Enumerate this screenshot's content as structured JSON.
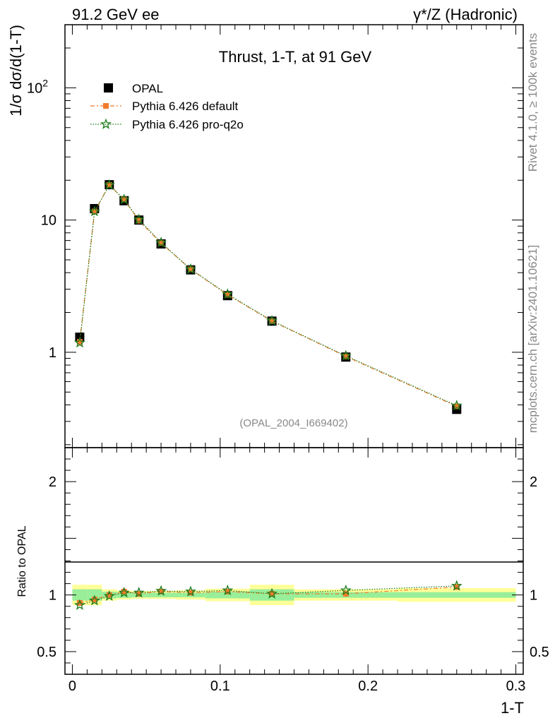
{
  "header": {
    "left": "91.2 GeV ee",
    "right": "γ*/Z (Hadronic)"
  },
  "side": {
    "rivet": "Rivet 4.1.0, ≥ 100k events",
    "mcplots": "mcplots.cern.ch [arXiv:2401.10621]"
  },
  "chart_data": [
    {
      "type": "scatter",
      "title": "Thrust, 1-T, at 91 GeV",
      "analysis_tag": "(OPAL_2004_I669402)",
      "xlabel": "1-T",
      "ylabel": "1/σ  dσ/d(1-T)",
      "yscale": "log",
      "xlim": [
        -0.005,
        0.305
      ],
      "ylim": [
        0.19,
        300
      ],
      "x_ticks": [
        "0",
        "0.1",
        "0.2",
        "0.3"
      ],
      "y_ticks": [
        "1",
        "10",
        "10^2"
      ],
      "x": [
        0.005,
        0.015,
        0.025,
        0.035,
        0.045,
        0.06,
        0.08,
        0.105,
        0.135,
        0.185,
        0.26
      ],
      "series": [
        {
          "name": "OPAL",
          "color": "#000000",
          "marker": "square",
          "values": [
            1.3,
            12.2,
            18.5,
            14.0,
            10.0,
            6.6,
            4.2,
            2.68,
            1.72,
            0.92,
            0.37
          ]
        },
        {
          "name": "Pythia 6.426 default",
          "color": "#f07c2a",
          "marker": "square-small",
          "line": "dashdot",
          "values": [
            1.2,
            11.6,
            18.4,
            14.3,
            9.9,
            6.7,
            4.24,
            2.72,
            1.72,
            0.93,
            0.39
          ]
        },
        {
          "name": "Pythia 6.426 pro-q2o",
          "color": "#1a7a1a",
          "marker": "star",
          "line": "dotted",
          "values": [
            1.18,
            11.6,
            18.4,
            14.3,
            10.1,
            6.75,
            4.25,
            2.75,
            1.73,
            0.94,
            0.395
          ]
        }
      ]
    },
    {
      "type": "scatter",
      "title": "",
      "xlabel": "1-T",
      "ylabel": "Ratio to OPAL",
      "xlim": [
        -0.005,
        0.305
      ],
      "ylim": [
        0.3,
        2.3
      ],
      "y_ticks": [
        "0.5",
        "1",
        "2"
      ],
      "bins": [
        0.0,
        0.01,
        0.02,
        0.03,
        0.04,
        0.05,
        0.07,
        0.09,
        0.12,
        0.15,
        0.22,
        0.3
      ],
      "band_inner": [
        0.05,
        0.05,
        0.03,
        0.025,
        0.02,
        0.02,
        0.02,
        0.03,
        0.05,
        0.025,
        0.025
      ],
      "band_outer": [
        0.09,
        0.09,
        0.05,
        0.04,
        0.035,
        0.035,
        0.04,
        0.055,
        0.09,
        0.05,
        0.06
      ],
      "x": [
        0.005,
        0.015,
        0.025,
        0.035,
        0.045,
        0.06,
        0.08,
        0.105,
        0.135,
        0.185,
        0.26
      ],
      "series": [
        {
          "name": "Pythia 6.426 default",
          "color": "#f07c2a",
          "values": [
            0.93,
            0.96,
            1.0,
            1.03,
            1.01,
            1.03,
            1.02,
            1.03,
            1.01,
            1.01,
            1.07
          ]
        },
        {
          "name": "Pythia 6.426 pro-q2o",
          "color": "#1a7a1a",
          "values": [
            0.91,
            0.95,
            0.99,
            1.02,
            1.02,
            1.035,
            1.03,
            1.04,
            1.01,
            1.04,
            1.08
          ]
        }
      ]
    }
  ]
}
